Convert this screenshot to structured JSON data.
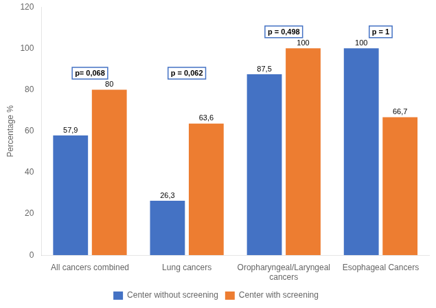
{
  "chart_data": {
    "type": "bar",
    "categories": [
      "All cancers combined",
      "Lung cancers",
      "Oropharyngeal/Laryngeal\ncancers",
      "Esophageal Cancers"
    ],
    "series": [
      {
        "name": "Center without screening",
        "color": "#4472C4",
        "values": [
          57.9,
          26.3,
          87.5,
          100
        ],
        "value_labels": [
          "57,9",
          "26,3",
          "87,5",
          "100"
        ]
      },
      {
        "name": "Center with screening",
        "color": "#ED7D31",
        "values": [
          80,
          63.6,
          100,
          66.7
        ],
        "value_labels": [
          "80",
          "63,6",
          "100",
          "66,7"
        ]
      }
    ],
    "ylabel": "Percentage %",
    "ylim": [
      0,
      120
    ],
    "yticks": [
      0,
      20,
      40,
      60,
      80,
      100,
      120
    ],
    "grid": false,
    "legend": "bottom",
    "data_labels": true,
    "annotations": [
      {
        "text": "p= 0,068",
        "x": "All cancers combined",
        "y": 88,
        "color": "#4472C4"
      },
      {
        "text": "p = 0,062",
        "x": "Lung cancers",
        "y": 88,
        "color": "#4472C4"
      },
      {
        "text": "p = 0,498",
        "x": "Oropharyngeal/Laryngeal\ncancers",
        "y": 108,
        "color": "#4472C4"
      },
      {
        "text": "p = 1",
        "x": "Esophageal Cancers",
        "y": 108,
        "color": "#4472C4"
      }
    ]
  }
}
